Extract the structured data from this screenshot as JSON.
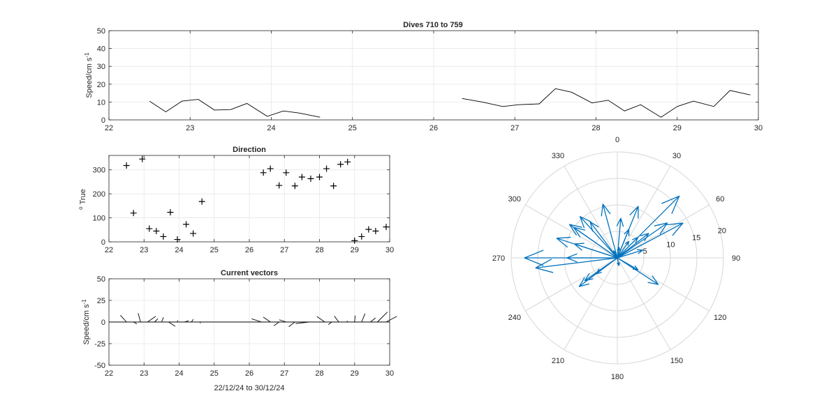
{
  "chart_data": [
    {
      "type": "line",
      "title": "Dives 710 to 759",
      "xlabel": "",
      "ylabel": "Speed/cm s^-1",
      "ylabel_main": "Speed/cm s",
      "ylabel_sup": "-1",
      "xlim": [
        22,
        30
      ],
      "ylim": [
        0,
        50
      ],
      "xticks": [
        "22",
        "23",
        "24",
        "25",
        "26",
        "27",
        "28",
        "29",
        "30"
      ],
      "yticks": [
        "0",
        "10",
        "20",
        "30",
        "40",
        "50"
      ],
      "grid": true,
      "series": [
        {
          "segments": [
            {
              "x": [
                22.5,
                22.7,
                22.9,
                23.1,
                23.3,
                23.5,
                23.7,
                23.95,
                24.15,
                24.35,
                24.6
              ],
              "y": [
                10.5,
                4.5,
                10.5,
                11.5,
                5.5,
                5.8,
                9.2,
                2.0,
                5.0,
                3.8,
                1.5
              ]
            },
            {
              "x": [
                26.35,
                26.6,
                26.85,
                27.05,
                27.3,
                27.5,
                27.7,
                27.95,
                28.15,
                28.35,
                28.55,
                28.8,
                29.0,
                29.2,
                29.45,
                29.65,
                29.9
              ],
              "y": [
                12.0,
                10.0,
                7.5,
                8.5,
                9.0,
                17.5,
                15.5,
                9.5,
                11.0,
                5.0,
                8.5,
                1.5,
                7.5,
                10.5,
                7.5,
                16.5,
                14.0
              ]
            }
          ]
        }
      ]
    },
    {
      "type": "scatter",
      "title": "Direction",
      "xlabel": "",
      "ylabel": "o True",
      "ylabel_sup": "o",
      "ylabel_main": "True",
      "xlim": [
        22,
        30
      ],
      "ylim": [
        0,
        360
      ],
      "xticks": [
        "22",
        "23",
        "24",
        "25",
        "26",
        "27",
        "28",
        "29",
        "30"
      ],
      "yticks": [
        "0",
        "100",
        "200",
        "300"
      ],
      "grid": true,
      "marker": "+",
      "points": [
        [
          22.5,
          318
        ],
        [
          22.7,
          120
        ],
        [
          22.95,
          345
        ],
        [
          23.15,
          55
        ],
        [
          23.35,
          45
        ],
        [
          23.55,
          22
        ],
        [
          23.75,
          123
        ],
        [
          23.95,
          10
        ],
        [
          24.2,
          73
        ],
        [
          24.4,
          35
        ],
        [
          24.65,
          168
        ],
        [
          26.4,
          288
        ],
        [
          26.6,
          305
        ],
        [
          26.85,
          235
        ],
        [
          27.05,
          288
        ],
        [
          27.3,
          233
        ],
        [
          27.5,
          270
        ],
        [
          27.75,
          263
        ],
        [
          28.0,
          270
        ],
        [
          28.2,
          305
        ],
        [
          28.4,
          233
        ],
        [
          28.6,
          323
        ],
        [
          28.8,
          333
        ],
        [
          29.0,
          5
        ],
        [
          29.2,
          22
        ],
        [
          29.4,
          52
        ],
        [
          29.6,
          45
        ],
        [
          29.9,
          62
        ]
      ]
    },
    {
      "type": "vector",
      "title": "Current vectors",
      "xlabel": "22/12/24 to 30/12/24",
      "ylabel": "Speed/cm s^-1",
      "ylabel_main": "Speed/cm s",
      "ylabel_sup": "-1",
      "xlim": [
        22,
        30
      ],
      "ylim": [
        -50,
        50
      ],
      "xticks": [
        "22",
        "23",
        "24",
        "25",
        "26",
        "27",
        "28",
        "29",
        "30"
      ],
      "yticks": [
        "-50",
        "-25",
        "0",
        "25",
        "50"
      ],
      "grid": true,
      "vectors": [
        {
          "x": 22.5,
          "speed": 10.5,
          "dir": 318
        },
        {
          "x": 22.7,
          "speed": 4.5,
          "dir": 120
        },
        {
          "x": 22.9,
          "speed": 10.5,
          "dir": 345
        },
        {
          "x": 23.1,
          "speed": 11.5,
          "dir": 55
        },
        {
          "x": 23.3,
          "speed": 5.5,
          "dir": 45
        },
        {
          "x": 23.5,
          "speed": 5.8,
          "dir": 22
        },
        {
          "x": 23.7,
          "speed": 9.2,
          "dir": 123
        },
        {
          "x": 23.95,
          "speed": 2.0,
          "dir": 10
        },
        {
          "x": 24.15,
          "speed": 5.0,
          "dir": 73
        },
        {
          "x": 24.35,
          "speed": 3.8,
          "dir": 35
        },
        {
          "x": 24.6,
          "speed": 1.5,
          "dir": 168
        },
        {
          "x": 26.35,
          "speed": 12.0,
          "dir": 288
        },
        {
          "x": 26.6,
          "speed": 10.0,
          "dir": 305
        },
        {
          "x": 26.85,
          "speed": 7.5,
          "dir": 235
        },
        {
          "x": 27.05,
          "speed": 8.5,
          "dir": 288
        },
        {
          "x": 27.3,
          "speed": 9.0,
          "dir": 233
        },
        {
          "x": 27.5,
          "speed": 17.5,
          "dir": 270
        },
        {
          "x": 27.7,
          "speed": 15.5,
          "dir": 263
        },
        {
          "x": 27.95,
          "speed": 9.5,
          "dir": 270
        },
        {
          "x": 28.15,
          "speed": 11.0,
          "dir": 305
        },
        {
          "x": 28.35,
          "speed": 5.0,
          "dir": 233
        },
        {
          "x": 28.55,
          "speed": 8.5,
          "dir": 323
        },
        {
          "x": 28.8,
          "speed": 1.5,
          "dir": 333
        },
        {
          "x": 29.0,
          "speed": 7.5,
          "dir": 5
        },
        {
          "x": 29.2,
          "speed": 10.5,
          "dir": 22
        },
        {
          "x": 29.45,
          "speed": 7.5,
          "dir": 52
        },
        {
          "x": 29.65,
          "speed": 16.5,
          "dir": 45
        },
        {
          "x": 29.9,
          "speed": 14.0,
          "dir": 62
        }
      ]
    },
    {
      "type": "polar_compass",
      "title": "",
      "rmax": 20,
      "rticks": [
        "5",
        "10",
        "15",
        "20"
      ],
      "angle_ticks": [
        "0",
        "30",
        "60",
        "90",
        "120",
        "150",
        "180",
        "210",
        "240",
        "270",
        "300",
        "330"
      ],
      "arrow_color": "#0072BD",
      "arrows": [
        {
          "speed": 10.5,
          "dir": 318
        },
        {
          "speed": 4.5,
          "dir": 120
        },
        {
          "speed": 10.5,
          "dir": 345
        },
        {
          "speed": 11.5,
          "dir": 55
        },
        {
          "speed": 5.5,
          "dir": 45
        },
        {
          "speed": 5.8,
          "dir": 22
        },
        {
          "speed": 9.2,
          "dir": 123
        },
        {
          "speed": 2.0,
          "dir": 10
        },
        {
          "speed": 5.0,
          "dir": 73
        },
        {
          "speed": 3.8,
          "dir": 35
        },
        {
          "speed": 1.5,
          "dir": 168
        },
        {
          "speed": 12.0,
          "dir": 288
        },
        {
          "speed": 10.0,
          "dir": 305
        },
        {
          "speed": 7.5,
          "dir": 235
        },
        {
          "speed": 8.5,
          "dir": 288
        },
        {
          "speed": 9.0,
          "dir": 233
        },
        {
          "speed": 17.5,
          "dir": 270
        },
        {
          "speed": 15.5,
          "dir": 263
        },
        {
          "speed": 9.5,
          "dir": 270
        },
        {
          "speed": 11.0,
          "dir": 305
        },
        {
          "speed": 5.0,
          "dir": 233
        },
        {
          "speed": 8.5,
          "dir": 323
        },
        {
          "speed": 1.5,
          "dir": 333
        },
        {
          "speed": 7.5,
          "dir": 5
        },
        {
          "speed": 10.5,
          "dir": 22
        },
        {
          "speed": 7.5,
          "dir": 52
        },
        {
          "speed": 16.5,
          "dir": 45
        },
        {
          "speed": 14.0,
          "dir": 62
        }
      ]
    }
  ]
}
